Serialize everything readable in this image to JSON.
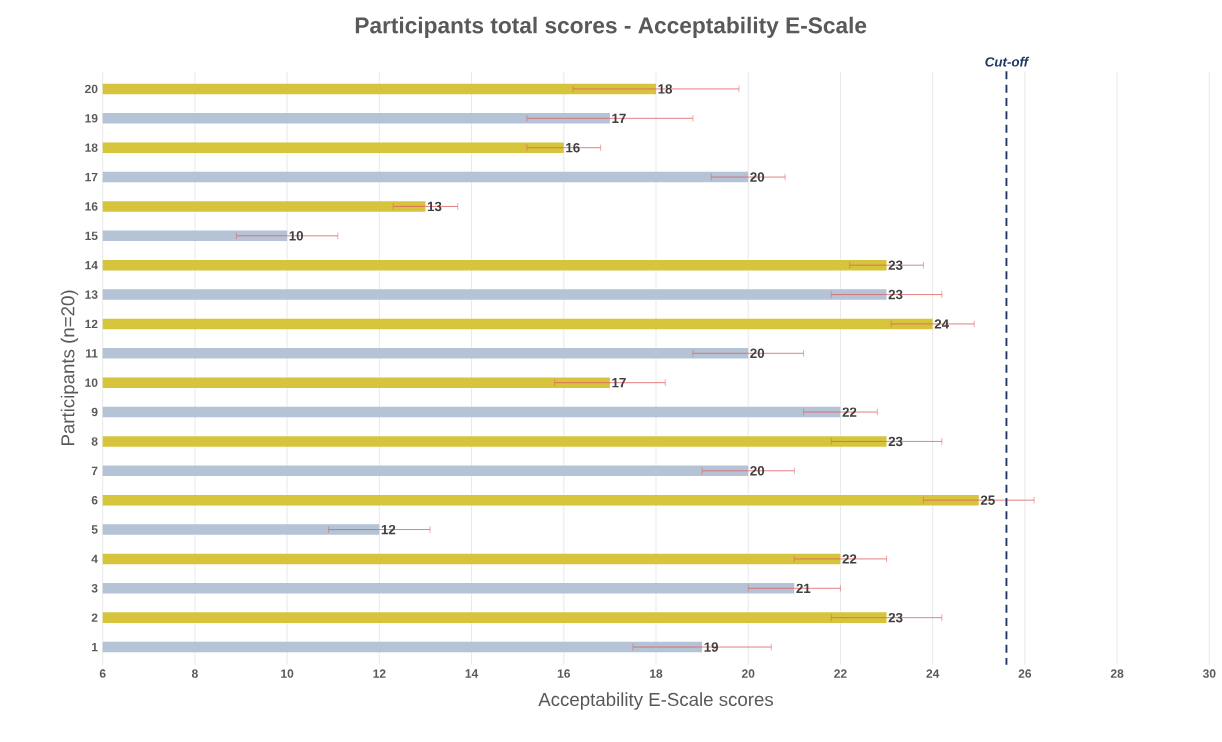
{
  "chart_data": {
    "type": "bar",
    "orientation": "horizontal",
    "title": "Participants total scores - Acceptability E-Scale",
    "xlabel": "Acceptability E-Scale scores",
    "ylabel": "Participants (n=20)",
    "categories": [
      "20",
      "19",
      "18",
      "17",
      "16",
      "15",
      "14",
      "13",
      "12",
      "11",
      "10",
      "9",
      "8",
      "7",
      "6",
      "5",
      "4",
      "3",
      "2",
      "1"
    ],
    "values": [
      18,
      17,
      16,
      20,
      13,
      10,
      23,
      23,
      24,
      20,
      17,
      22,
      23,
      20,
      25,
      12,
      22,
      21,
      23,
      19
    ],
    "errors": [
      1.8,
      1.8,
      0.8,
      0.8,
      0.7,
      1.1,
      0.8,
      1.2,
      0.9,
      1.2,
      1.2,
      0.8,
      1.2,
      1.0,
      1.2,
      1.1,
      1.0,
      1.0,
      1.2,
      1.5
    ],
    "colors": [
      "#d6c43c",
      "#b4c3d6",
      "#d6c43c",
      "#b4c3d6",
      "#d6c43c",
      "#b4c3d6",
      "#d6c43c",
      "#b4c3d6",
      "#d6c43c",
      "#b4c3d6",
      "#d6c43c",
      "#b4c3d6",
      "#d6c43c",
      "#b4c3d6",
      "#d6c43c",
      "#b4c3d6",
      "#d6c43c",
      "#b4c3d6",
      "#d6c43c",
      "#b4c3d6"
    ],
    "xlim": [
      6,
      30
    ],
    "xticks": [
      6,
      8,
      10,
      12,
      14,
      16,
      18,
      20,
      22,
      24,
      26,
      28,
      30
    ],
    "grid": "x",
    "data_labels": true,
    "ref_lines": [
      {
        "axis": "x",
        "value": 25.6,
        "label": "Cut-off",
        "color": "#1f3864",
        "line_style": "dashed"
      }
    ]
  }
}
